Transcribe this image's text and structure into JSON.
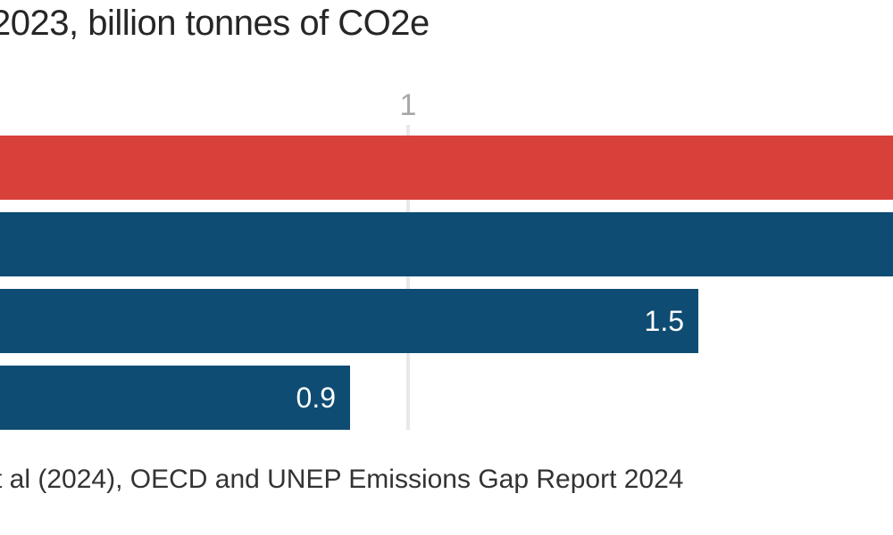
{
  "header": {
    "title": "2023, billion tonnes of CO2e"
  },
  "footer": {
    "source": "t al (2024), OECD and UNEP Emissions Gap Report 2024"
  },
  "colors": {
    "bar_red": "#d8413a",
    "bar_blue": "#0e4c73",
    "gridline": "#e8e8e8",
    "tick_label": "#a8a8a8",
    "value_label": "#ffffff",
    "title_text": "#262626",
    "source_text": "#333333",
    "background": "#ffffff"
  },
  "chart_data": {
    "type": "bar",
    "orientation": "horizontal",
    "title": "2023, billion tonnes of CO2e",
    "xlabel": "",
    "ylabel": "",
    "grid": "vertical, single labeled gridline",
    "x_ticks": [
      {
        "value": 1,
        "label": "1"
      }
    ],
    "bars": [
      {
        "name": "bar-1",
        "color": "#d8413a",
        "value": null,
        "value_label": "",
        "clipped_right": true
      },
      {
        "name": "bar-2",
        "color": "#0e4c73",
        "value": null,
        "value_label": "",
        "clipped_right": true
      },
      {
        "name": "bar-3",
        "color": "#0e4c73",
        "value": 1.5,
        "value_label": "1.5",
        "clipped_right": false
      },
      {
        "name": "bar-4",
        "color": "#0e4c73",
        "value": 0.9,
        "value_label": "0.9",
        "clipped_right": false
      }
    ],
    "source": "t al (2024), OECD and UNEP Emissions Gap Report 2024"
  }
}
